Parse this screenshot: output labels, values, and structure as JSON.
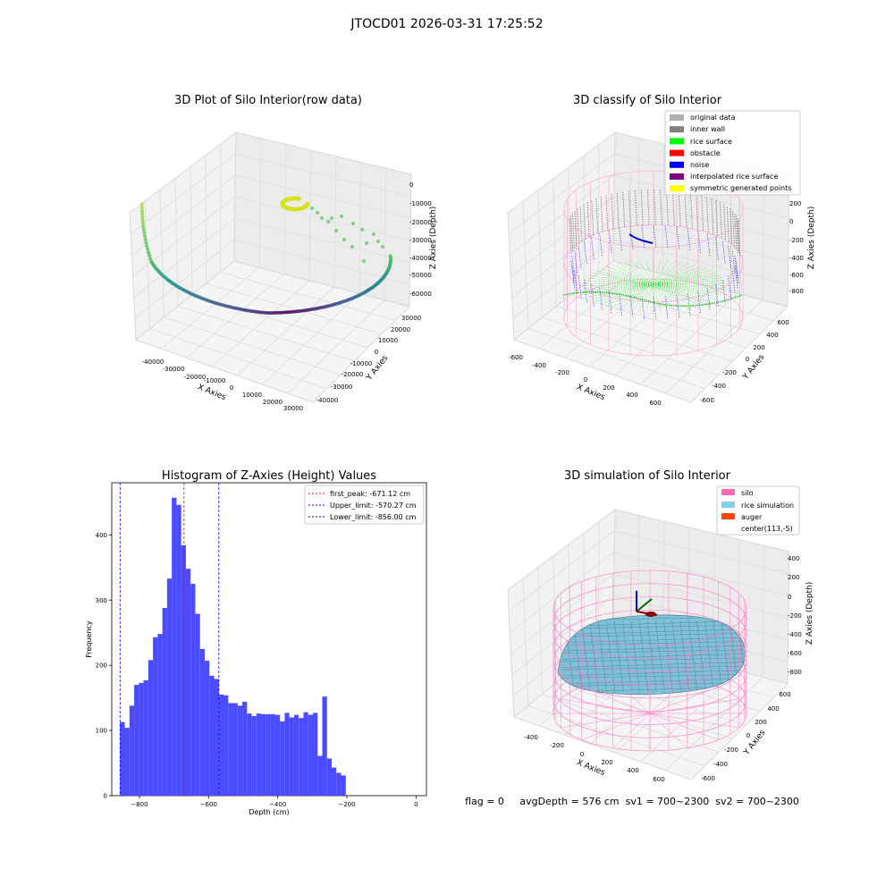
{
  "figure": {
    "suptitle": "JTOCD01 2026-03-31 17:25:52",
    "footer": "flag = 0     avgDepth = 576 cm  sv1 = 700~2300  sv2 = 700~2300"
  },
  "panels": {
    "raw": {
      "title": "3D Plot of Silo Interior(row data)",
      "xlabel": "X Axies",
      "ylabel": "Y Axies",
      "zlabel": "Z Axies (Depth)",
      "xticks": [
        "-40000",
        "-30000",
        "-20000",
        "-10000",
        "0",
        "10000",
        "20000",
        "30000"
      ],
      "yticks": [
        "30000",
        "20000",
        "10000",
        "0",
        "-10000",
        "-20000",
        "-30000",
        "-40000"
      ],
      "zticks": [
        "0",
        "-10000",
        "-20000",
        "-30000",
        "-40000",
        "-50000",
        "-60000"
      ]
    },
    "classify": {
      "title": "3D classify of Silo Interior",
      "xlabel": "X Axies",
      "ylabel": "Y Axies",
      "zlabel": "Z Axies (Depth)",
      "xticks": [
        "-600",
        "-400",
        "-200",
        "0",
        "200",
        "400",
        "600"
      ],
      "yticks": [
        "600",
        "400",
        "200",
        "0",
        "-200",
        "-400",
        "-600"
      ],
      "zticks": [
        "200",
        "0",
        "-200",
        "-400",
        "-600",
        "-800"
      ],
      "legend": [
        {
          "label": "original data",
          "color": "#b0b0b0"
        },
        {
          "label": "inner wall",
          "color": "#808080"
        },
        {
          "label": "rice surface",
          "color": "#00ff00"
        },
        {
          "label": "obstacle",
          "color": "#ff0000"
        },
        {
          "label": "noise",
          "color": "#0000ff"
        },
        {
          "label": "interpolated rice surface",
          "color": "#800080"
        },
        {
          "label": "symmetric generated points",
          "color": "#ffff00"
        }
      ]
    },
    "simulation": {
      "title": "3D simulation of Silo Interior",
      "xlabel": "X Axies",
      "ylabel": "Y Axies",
      "zlabel": "Z Axies (Depth)",
      "xticks": [
        "-400",
        "-200",
        "0",
        "200",
        "400",
        "600"
      ],
      "yticks": [
        "600",
        "400",
        "200",
        "0",
        "-200",
        "-400",
        "-600"
      ],
      "zticks": [
        "400",
        "200",
        "0",
        "-200",
        "-400",
        "-600",
        "-800"
      ],
      "legend": [
        {
          "label": "silo",
          "color": "#ff69b4"
        },
        {
          "label": "rice simulation",
          "color": "#87ceeb"
        },
        {
          "label": "auger",
          "color": "#ff4500"
        },
        {
          "label": "center(113,-5)",
          "color": ""
        }
      ]
    }
  },
  "chart_data": {
    "type": "bar",
    "title": "Histogram of Z-Axies (Height) Values",
    "xlabel": "Depth (cm)",
    "ylabel": "Frequency",
    "xlim": [
      -880,
      30
    ],
    "ylim": [
      0,
      480
    ],
    "xticks": [
      -800,
      -600,
      -400,
      -200,
      0
    ],
    "yticks": [
      0,
      100,
      200,
      300,
      400
    ],
    "bin_start": -856,
    "bin_width": 13.6,
    "values": [
      113,
      104,
      138,
      170,
      173,
      177,
      208,
      243,
      248,
      288,
      333,
      457,
      446,
      384,
      348,
      325,
      279,
      225,
      207,
      184,
      179,
      155,
      154,
      142,
      142,
      138,
      144,
      126,
      122,
      126,
      125,
      125,
      125,
      124,
      114,
      127,
      120,
      124,
      119,
      128,
      124,
      127,
      61,
      152,
      57,
      43,
      35,
      31
    ],
    "lines": [
      {
        "label": "first_peak: -671.12 cm",
        "x": -671.12,
        "color": "#ff0000"
      },
      {
        "label": "Upper_limit: -570.27 cm",
        "x": -570.27,
        "color": "#0000ff"
      },
      {
        "label": "Lower_limit: -856.00 cm",
        "x": -856.0,
        "color": "#0000ff"
      }
    ],
    "bar_color": "#4b4bff"
  }
}
